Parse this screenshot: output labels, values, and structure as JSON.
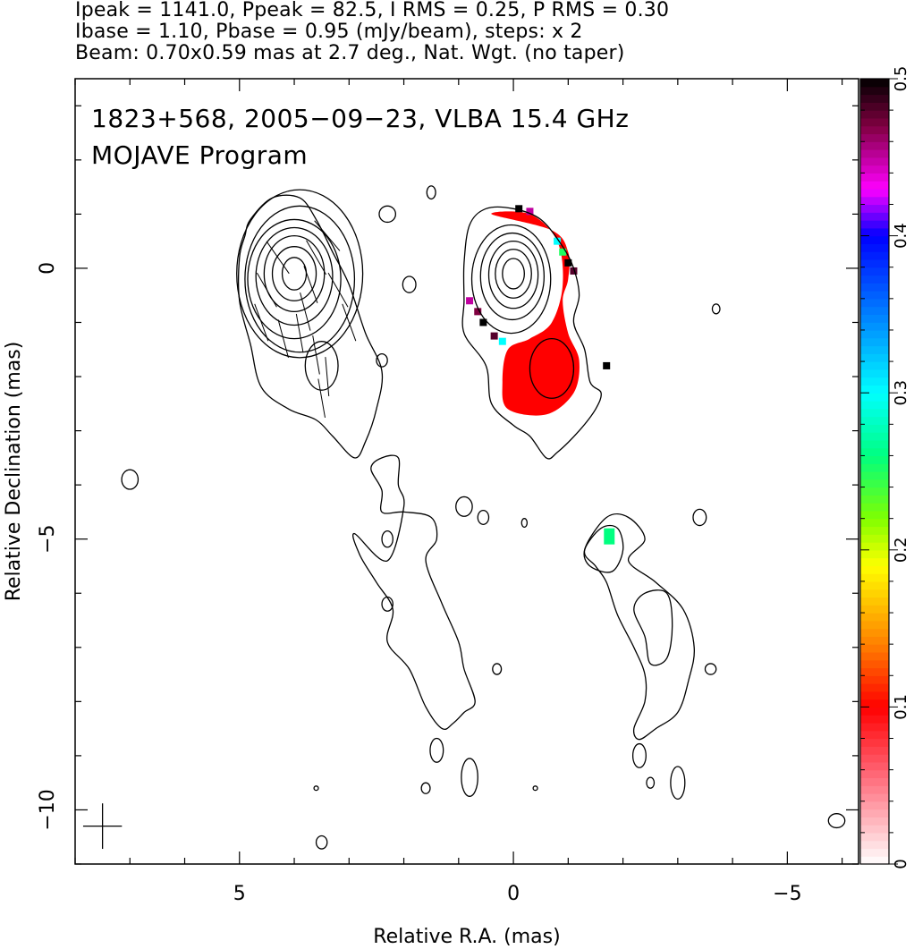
{
  "header": {
    "line1": "Ipeak = 1141.0, Ppeak = 82.5, I RMS = 0.25, P RMS = 0.30",
    "line2": "Ibase = 1.10, Pbase = 0.95 (mJy/beam), steps: x 2",
    "line3": "Beam: 0.70x0.59 mas at 2.7 deg., Nat. Wgt. (no taper)"
  },
  "annotations": {
    "source": "1823+568, 2005−09−23, VLBA 15.4 GHz",
    "program": "MOJAVE Program"
  },
  "chart_data": {
    "type": "contour",
    "xlabel": "Relative R.A. (mas)",
    "ylabel": "Relative Declination (mas)",
    "xlim": [
      8,
      -6.3
    ],
    "ylim": [
      -11,
      3.5
    ],
    "x_ticks": [
      {
        "value": 5,
        "label": "5"
      },
      {
        "value": 0,
        "label": "0"
      },
      {
        "value": -5,
        "label": "−5"
      }
    ],
    "y_ticks": [
      {
        "value": 0,
        "label": "0"
      },
      {
        "value": -5,
        "label": "−5"
      },
      {
        "value": -10,
        "label": "−10"
      }
    ],
    "colorbar": {
      "range": [
        0,
        0.5
      ],
      "ticks": [
        {
          "value": 0,
          "label": "0"
        },
        {
          "value": 0.1,
          "label": "0.1"
        },
        {
          "value": 0.2,
          "label": "0.2"
        },
        {
          "value": 0.3,
          "label": "0.3"
        },
        {
          "value": 0.4,
          "label": "0.4"
        },
        {
          "value": 0.5,
          "label": "0.5"
        }
      ],
      "colormap": [
        {
          "v": 0.0,
          "c": "#ffffff"
        },
        {
          "v": 0.06,
          "c": "#ff6070"
        },
        {
          "v": 0.1,
          "c": "#ff0000"
        },
        {
          "v": 0.14,
          "c": "#ff8000"
        },
        {
          "v": 0.19,
          "c": "#ffff00"
        },
        {
          "v": 0.22,
          "c": "#80ff00"
        },
        {
          "v": 0.26,
          "c": "#00ff80"
        },
        {
          "v": 0.3,
          "c": "#00ffff"
        },
        {
          "v": 0.35,
          "c": "#0080ff"
        },
        {
          "v": 0.4,
          "c": "#0000ff"
        },
        {
          "v": 0.43,
          "c": "#ff00ff"
        },
        {
          "v": 0.47,
          "c": "#800040"
        },
        {
          "v": 0.5,
          "c": "#000000"
        }
      ]
    },
    "panels": [
      {
        "name": "total-intensity",
        "center": [
          4,
          0
        ],
        "contours": [
          {
            "cx": 4.0,
            "cy": -0.1,
            "rx": 0.22,
            "ry": 0.3
          },
          {
            "cx": 4.0,
            "cy": -0.1,
            "rx": 0.4,
            "ry": 0.5
          },
          {
            "cx": 4.0,
            "cy": -0.1,
            "rx": 0.55,
            "ry": 0.7
          },
          {
            "cx": 4.0,
            "cy": -0.15,
            "rx": 0.7,
            "ry": 0.9
          },
          {
            "cx": 4.0,
            "cy": -0.2,
            "rx": 0.85,
            "ry": 1.1
          },
          {
            "cx": 3.9,
            "cy": -0.2,
            "rx": 1.0,
            "ry": 1.35
          },
          {
            "cx": 3.9,
            "cy": -0.1,
            "rx": 1.15,
            "ry": 1.55
          },
          {
            "cx": 3.5,
            "cy": -1.8,
            "rx": 0.3,
            "ry": 0.45
          }
        ],
        "outer_contour": [
          [
            4.8,
            0.9
          ],
          [
            4.4,
            1.3
          ],
          [
            3.9,
            1.3
          ],
          [
            3.6,
            0.9
          ],
          [
            3.3,
            0.3
          ],
          [
            3.0,
            -0.3
          ],
          [
            2.7,
            -1.2
          ],
          [
            2.4,
            -1.9
          ],
          [
            2.5,
            -2.6
          ],
          [
            2.7,
            -3.2
          ],
          [
            2.9,
            -3.5
          ],
          [
            3.3,
            -3.1
          ],
          [
            3.6,
            -2.8
          ],
          [
            4.1,
            -2.6
          ],
          [
            4.6,
            -2.2
          ],
          [
            4.8,
            -1.4
          ],
          [
            5.0,
            -0.6
          ],
          [
            5.0,
            0.2
          ],
          [
            4.9,
            0.6
          ]
        ],
        "evpa_ticks": [
          [
            3.4,
            0.6,
            50
          ],
          [
            3.6,
            0.2,
            60
          ],
          [
            3.7,
            -0.3,
            70
          ],
          [
            3.8,
            -0.8,
            75
          ],
          [
            3.9,
            -1.2,
            80
          ],
          [
            3.6,
            -1.6,
            80
          ],
          [
            3.4,
            -2.0,
            85
          ],
          [
            3.5,
            -2.4,
            80
          ],
          [
            4.3,
            0.2,
            55
          ],
          [
            4.5,
            -0.4,
            60
          ],
          [
            4.6,
            -1.0,
            70
          ],
          [
            4.2,
            -1.3,
            75
          ],
          [
            3.2,
            -0.4,
            60
          ],
          [
            3.0,
            -1.0,
            70
          ]
        ]
      },
      {
        "name": "polarization",
        "center": [
          0,
          0
        ],
        "contours": [
          {
            "cx": 0.0,
            "cy": -0.1,
            "rx": 0.2,
            "ry": 0.28
          },
          {
            "cx": 0.0,
            "cy": -0.1,
            "rx": 0.33,
            "ry": 0.45
          },
          {
            "cx": 0.0,
            "cy": -0.12,
            "rx": 0.45,
            "ry": 0.62
          },
          {
            "cx": 0.02,
            "cy": -0.15,
            "rx": 0.58,
            "ry": 0.8
          },
          {
            "cx": 0.04,
            "cy": -0.2,
            "rx": 0.72,
            "ry": 1.0
          },
          {
            "cx": -0.7,
            "cy": -1.85,
            "rx": 0.4,
            "ry": 0.55
          }
        ],
        "pol_region_value": 0.1,
        "pol_region": [
          [
            0.4,
            1.0
          ],
          [
            -0.3,
            1.0
          ],
          [
            -0.8,
            0.5
          ],
          [
            -0.9,
            -0.3
          ],
          [
            -0.7,
            -1.0
          ],
          [
            -0.3,
            -1.3
          ],
          [
            0.1,
            -1.5
          ],
          [
            0.2,
            -2.1
          ],
          [
            0.1,
            -2.6
          ],
          [
            -0.6,
            -2.7
          ],
          [
            -1.1,
            -2.3
          ],
          [
            -1.2,
            -1.7
          ],
          [
            -1.0,
            -1.2
          ],
          [
            -0.9,
            -0.6
          ],
          [
            -1.0,
            -0.2
          ],
          [
            -1.0,
            0.3
          ],
          [
            -0.7,
            0.7
          ]
        ],
        "outer_contour": [
          [
            0.8,
            0.8
          ],
          [
            0.5,
            1.1
          ],
          [
            0.0,
            1.1
          ],
          [
            -0.5,
            0.9
          ],
          [
            -0.9,
            0.4
          ],
          [
            -1.1,
            0.0
          ],
          [
            -1.2,
            -0.5
          ],
          [
            -1.1,
            -1.0
          ],
          [
            -1.3,
            -1.5
          ],
          [
            -1.4,
            -2.1
          ],
          [
            -1.6,
            -2.3
          ],
          [
            -1.5,
            -2.6
          ],
          [
            -1.2,
            -3.0
          ],
          [
            -0.8,
            -3.4
          ],
          [
            -0.6,
            -3.5
          ],
          [
            -0.3,
            -3.1
          ],
          [
            0.0,
            -2.9
          ],
          [
            0.4,
            -2.5
          ],
          [
            0.5,
            -1.8
          ],
          [
            0.9,
            -1.2
          ],
          [
            0.9,
            -0.6
          ],
          [
            0.9,
            0.1
          ]
        ],
        "high_fp_pixels": [
          [
            0.8,
            -0.6,
            0.45
          ],
          [
            0.65,
            -0.8,
            0.47
          ],
          [
            0.55,
            -1.0,
            0.5
          ],
          [
            0.35,
            -1.25,
            0.48
          ],
          [
            0.2,
            -1.35,
            0.3
          ],
          [
            -1.0,
            0.1,
            0.5
          ],
          [
            -1.1,
            -0.05,
            0.48
          ],
          [
            -0.9,
            0.3,
            0.25
          ],
          [
            -0.8,
            0.5,
            0.3
          ],
          [
            -0.3,
            1.05,
            0.45
          ],
          [
            -0.1,
            1.1,
            0.5
          ],
          [
            -1.7,
            -1.8,
            0.5
          ]
        ]
      }
    ],
    "small_islands": [
      [
        2.3,
        1.0,
        0.15,
        0.15
      ],
      [
        1.9,
        -0.3,
        0.12,
        0.15
      ],
      [
        1.5,
        1.4,
        0.08,
        0.12
      ],
      [
        2.4,
        -1.7,
        0.1,
        0.12
      ],
      [
        7.0,
        -3.9,
        0.15,
        0.18
      ],
      [
        2.3,
        -5.0,
        0.1,
        0.15
      ],
      [
        2.3,
        -6.2,
        0.1,
        0.13
      ],
      [
        0.9,
        -4.4,
        0.15,
        0.18
      ],
      [
        0.55,
        -4.6,
        0.1,
        0.13
      ],
      [
        -0.2,
        -4.7,
        0.05,
        0.08
      ],
      [
        -3.4,
        -4.6,
        0.12,
        0.15
      ],
      [
        -3.7,
        -0.75,
        0.07,
        0.09
      ],
      [
        -3.6,
        -7.4,
        0.1,
        0.1
      ],
      [
        0.3,
        -7.4,
        0.08,
        0.1
      ],
      [
        3.5,
        -10.6,
        0.1,
        0.12
      ],
      [
        -5.9,
        -10.2,
        0.15,
        0.13
      ],
      [
        3.6,
        -9.6,
        0.04,
        0.04
      ],
      [
        -0.4,
        -9.6,
        0.04,
        0.04
      ]
    ],
    "jet_outer_left": [
      [
        2.3,
        -5.4
      ],
      [
        2.9,
        -4.9
      ],
      [
        2.8,
        -5.3
      ],
      [
        2.5,
        -5.8
      ],
      [
        2.2,
        -6.3
      ],
      [
        2.3,
        -6.9
      ],
      [
        1.9,
        -7.4
      ],
      [
        1.6,
        -8.1
      ],
      [
        1.3,
        -8.5
      ],
      [
        1.1,
        -8.4
      ],
      [
        0.9,
        -8.2
      ],
      [
        0.7,
        -8.0
      ],
      [
        0.9,
        -7.4
      ],
      [
        1.0,
        -6.9
      ],
      [
        1.3,
        -6.2
      ],
      [
        1.6,
        -5.4
      ],
      [
        1.4,
        -5.0
      ],
      [
        1.5,
        -4.6
      ],
      [
        2.0,
        -4.5
      ],
      [
        2.4,
        -4.5
      ],
      [
        2.4,
        -4.1
      ],
      [
        2.6,
        -3.7
      ],
      [
        2.4,
        -3.5
      ],
      [
        2.1,
        -3.5
      ],
      [
        2.1,
        -4.0
      ],
      [
        2.0,
        -4.4
      ]
    ],
    "jet_outer_right": [
      [
        -1.3,
        -5.2
      ],
      [
        -1.7,
        -4.6
      ],
      [
        -2.1,
        -4.6
      ],
      [
        -2.4,
        -5.0
      ],
      [
        -2.1,
        -5.4
      ],
      [
        -2.6,
        -5.8
      ],
      [
        -3.1,
        -6.3
      ],
      [
        -3.3,
        -7.0
      ],
      [
        -3.2,
        -7.6
      ],
      [
        -3.0,
        -8.2
      ],
      [
        -2.6,
        -8.5
      ],
      [
        -2.3,
        -8.7
      ],
      [
        -2.2,
        -8.5
      ],
      [
        -2.4,
        -8.0
      ],
      [
        -2.4,
        -7.5
      ],
      [
        -2.2,
        -7.0
      ],
      [
        -1.9,
        -6.4
      ],
      [
        -1.7,
        -5.8
      ],
      [
        -1.5,
        -5.5
      ]
    ],
    "jet_inner_right": [
      [
        -1.6,
        -4.8
      ],
      [
        -1.9,
        -4.8
      ],
      [
        -2.0,
        -5.2
      ],
      [
        -1.8,
        -5.6
      ],
      [
        -1.4,
        -5.5
      ],
      [
        -1.3,
        -5.2
      ]
    ],
    "jet_inner_right2": [
      [
        -2.4,
        -6.0
      ],
      [
        -2.8,
        -6.0
      ],
      [
        -2.9,
        -6.6
      ],
      [
        -2.8,
        -7.2
      ],
      [
        -2.5,
        -7.3
      ],
      [
        -2.4,
        -6.8
      ],
      [
        -2.2,
        -6.3
      ]
    ],
    "knot_islands": [
      [
        1.4,
        -8.9,
        0.12,
        0.22
      ],
      [
        0.8,
        -9.4,
        0.15,
        0.35
      ],
      [
        -2.3,
        -9.0,
        0.12,
        0.22
      ],
      [
        -3.0,
        -9.5,
        0.13,
        0.3
      ],
      [
        1.6,
        -9.6,
        0.08,
        0.1
      ],
      [
        -2.5,
        -9.5,
        0.07,
        0.1
      ]
    ],
    "beam": {
      "x": 7.5,
      "y": -10.3,
      "major": 0.7,
      "minor": 0.59,
      "pa_deg": 2.7
    },
    "pol_pixel_green": {
      "x": -1.75,
      "y": -4.95,
      "value": 0.26
    }
  }
}
